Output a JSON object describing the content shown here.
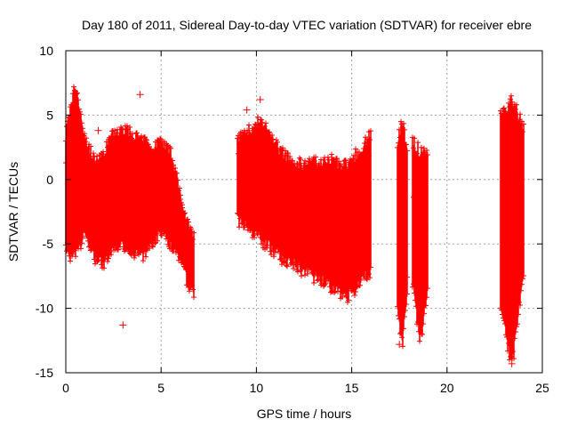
{
  "chart_data": {
    "type": "scatter",
    "title": "Day 180 of 2011, Sidereal Day-to-day VTEC variation (SDTVAR) for receiver ebre",
    "xlabel": "GPS time / hours",
    "ylabel": "SDTVAR / TECUs",
    "xlim": [
      0,
      25
    ],
    "ylim": [
      -15,
      10
    ],
    "x_ticks": [
      0,
      5,
      10,
      15,
      20,
      25
    ],
    "y_ticks": [
      -15,
      -10,
      -5,
      0,
      5,
      10
    ],
    "grid": true,
    "series": [
      {
        "name": "SDTVAR",
        "color": "#ff0000",
        "marker": "+",
        "envelope": [
          {
            "x": 0.0,
            "upper": 3.5,
            "lower": -5.5
          },
          {
            "x": 0.3,
            "upper": 6.0,
            "lower": -6.0
          },
          {
            "x": 0.5,
            "upper": 7.3,
            "lower": -5.8
          },
          {
            "x": 0.8,
            "upper": 5.0,
            "lower": -5.0
          },
          {
            "x": 1.0,
            "upper": 3.0,
            "lower": -4.0
          },
          {
            "x": 1.5,
            "upper": 1.5,
            "lower": -6.0
          },
          {
            "x": 2.0,
            "upper": 2.0,
            "lower": -6.5
          },
          {
            "x": 2.5,
            "upper": 3.5,
            "lower": -5.5
          },
          {
            "x": 3.0,
            "upper": 3.8,
            "lower": -5.0
          },
          {
            "x": 3.5,
            "upper": 3.5,
            "lower": -5.5
          },
          {
            "x": 4.0,
            "upper": 3.0,
            "lower": -6.0
          },
          {
            "x": 4.5,
            "upper": 2.5,
            "lower": -5.0
          },
          {
            "x": 5.0,
            "upper": 3.0,
            "lower": -4.0
          },
          {
            "x": 5.5,
            "upper": 2.0,
            "lower": -5.0
          },
          {
            "x": 6.0,
            "upper": -1.0,
            "lower": -6.0
          },
          {
            "x": 6.5,
            "upper": -4.0,
            "lower": -8.5
          },
          {
            "x": 6.7,
            "upper": -4.5,
            "lower": -8.8
          }
        ],
        "segments": [
          {
            "start": 9.0,
            "end": 16.0,
            "upper": [
              3,
              4.5,
              2,
              1,
              1.5,
              1,
              3.5
            ],
            "lower": [
              -3,
              -4.5,
              -6,
              -7,
              -8,
              -9,
              -7
            ]
          },
          {
            "start": 17.4,
            "end": 17.9,
            "upper": [
              3,
              4.5,
              2
            ],
            "lower": [
              -10,
              -12.8,
              -9
            ]
          },
          {
            "start": 18.2,
            "end": 19.0,
            "upper": [
              3,
              2,
              2.5
            ],
            "lower": [
              -8,
              -12.5,
              -9
            ]
          },
          {
            "start": 22.8,
            "end": 24.0,
            "upper": [
              5,
              6,
              4
            ],
            "lower": [
              -10,
              -14.5,
              -7
            ]
          }
        ],
        "outliers": [
          {
            "x": 3.0,
            "y": -11.3
          },
          {
            "x": 9.5,
            "y": 5.4
          },
          {
            "x": 10.2,
            "y": 6.2
          },
          {
            "x": 1.7,
            "y": 3.8
          },
          {
            "x": 3.9,
            "y": 6.6
          },
          {
            "x": 17.5,
            "y": -12.8
          },
          {
            "x": 23.4,
            "y": -14.3
          },
          {
            "x": 14.2,
            "y": -7.5
          }
        ]
      }
    ]
  }
}
